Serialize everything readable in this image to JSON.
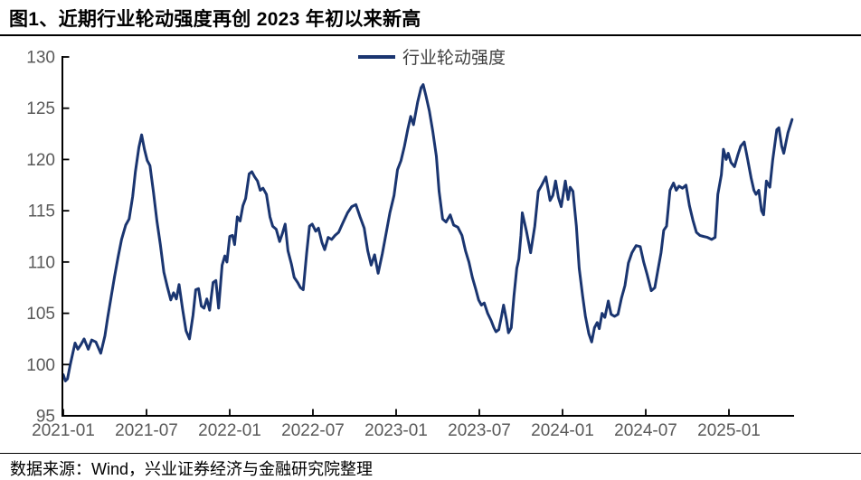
{
  "page": {
    "title": "图1、近期行业轮动强度再创 2023 年初以来新高",
    "source_note": "数据来源：Wind，兴业证券经济与金融研究院整理"
  },
  "chart_data": {
    "type": "line",
    "title": "行业轮动强度 (Industry Rotation Intensity)",
    "legend_position": "top-center",
    "grid": false,
    "line_color": "#1A3570",
    "axis_color": "#000000",
    "tick_label_color": "#595959",
    "ylim": [
      95,
      130
    ],
    "y_ticks": [
      95,
      100,
      105,
      110,
      115,
      120,
      125,
      130
    ],
    "x_tick_labels": [
      "2021-01",
      "2021-07",
      "2022-01",
      "2022-07",
      "2023-01",
      "2023-07",
      "2024-01",
      "2024-07",
      "2025-01"
    ],
    "x_unit": "months since 2021-01 (one tick every 6 months)",
    "x_range_months": [
      0,
      52.6
    ],
    "series": [
      {
        "name": "行业轮动强度",
        "points": [
          [
            0,
            99
          ],
          [
            0.15,
            98.4
          ],
          [
            0.3,
            98.6
          ],
          [
            0.5,
            100
          ],
          [
            0.7,
            101.2
          ],
          [
            0.85,
            102.1
          ],
          [
            1.05,
            101.5
          ],
          [
            1.25,
            101.9
          ],
          [
            1.5,
            102.5
          ],
          [
            1.8,
            101.5
          ],
          [
            2.05,
            102.4
          ],
          [
            2.35,
            102.2
          ],
          [
            2.7,
            101.1
          ],
          [
            3,
            102.8
          ],
          [
            3.2,
            104.6
          ],
          [
            3.45,
            106.6
          ],
          [
            3.7,
            108.6
          ],
          [
            3.95,
            110.5
          ],
          [
            4.2,
            112.2
          ],
          [
            4.5,
            113.6
          ],
          [
            4.75,
            114.2
          ],
          [
            5,
            116.4
          ],
          [
            5.2,
            118.8
          ],
          [
            5.45,
            121.2
          ],
          [
            5.65,
            122.4
          ],
          [
            5.85,
            121
          ],
          [
            6.05,
            119.9
          ],
          [
            6.25,
            119.4
          ],
          [
            6.5,
            116.8
          ],
          [
            6.75,
            114
          ],
          [
            7,
            111.7
          ],
          [
            7.25,
            109
          ],
          [
            7.5,
            107.6
          ],
          [
            7.75,
            106.3
          ],
          [
            7.95,
            107
          ],
          [
            8.15,
            106.4
          ],
          [
            8.35,
            107.8
          ],
          [
            8.6,
            105.4
          ],
          [
            8.85,
            103.3
          ],
          [
            9.1,
            102.5
          ],
          [
            9.35,
            104.8
          ],
          [
            9.55,
            107.3
          ],
          [
            9.75,
            107.4
          ],
          [
            9.95,
            105.7
          ],
          [
            10.15,
            105.5
          ],
          [
            10.35,
            106.4
          ],
          [
            10.55,
            105.3
          ],
          [
            10.8,
            108
          ],
          [
            11,
            108.2
          ],
          [
            11.2,
            105.5
          ],
          [
            11.45,
            109.7
          ],
          [
            11.65,
            110.6
          ],
          [
            11.8,
            110
          ],
          [
            12,
            112.5
          ],
          [
            12.2,
            112.6
          ],
          [
            12.35,
            111.7
          ],
          [
            12.55,
            114.4
          ],
          [
            12.75,
            114
          ],
          [
            12.95,
            115.5
          ],
          [
            13.15,
            116.2
          ],
          [
            13.4,
            118.6
          ],
          [
            13.6,
            118.8
          ],
          [
            13.8,
            118.3
          ],
          [
            14,
            117.9
          ],
          [
            14.2,
            117
          ],
          [
            14.4,
            117.2
          ],
          [
            14.65,
            116.6
          ],
          [
            14.9,
            114.4
          ],
          [
            15.1,
            113.5
          ],
          [
            15.35,
            113.2
          ],
          [
            15.6,
            112
          ],
          [
            15.8,
            112.8
          ],
          [
            16,
            113.7
          ],
          [
            16.2,
            111.1
          ],
          [
            16.45,
            109.8
          ],
          [
            16.65,
            108.5
          ],
          [
            16.9,
            108
          ],
          [
            17.1,
            107.5
          ],
          [
            17.3,
            107.3
          ],
          [
            17.55,
            110.9
          ],
          [
            17.75,
            113.5
          ],
          [
            17.95,
            113.7
          ],
          [
            18.2,
            113
          ],
          [
            18.4,
            113.3
          ],
          [
            18.65,
            111.9
          ],
          [
            18.85,
            111.2
          ],
          [
            19.1,
            112.4
          ],
          [
            19.35,
            112.2
          ],
          [
            19.6,
            112.6
          ],
          [
            19.85,
            112.9
          ],
          [
            20.15,
            113.8
          ],
          [
            20.5,
            114.8
          ],
          [
            20.8,
            115.4
          ],
          [
            21.1,
            115.6
          ],
          [
            21.4,
            114.4
          ],
          [
            21.7,
            113.3
          ],
          [
            21.95,
            111.1
          ],
          [
            22.2,
            109.7
          ],
          [
            22.45,
            110.7
          ],
          [
            22.7,
            108.9
          ],
          [
            23,
            110.8
          ],
          [
            23.25,
            112.6
          ],
          [
            23.55,
            114.8
          ],
          [
            23.85,
            116.5
          ],
          [
            24.1,
            119
          ],
          [
            24.35,
            119.9
          ],
          [
            24.6,
            121.3
          ],
          [
            24.85,
            123
          ],
          [
            25.05,
            124.2
          ],
          [
            25.25,
            123.4
          ],
          [
            25.55,
            125.6
          ],
          [
            25.8,
            127
          ],
          [
            25.95,
            127.3
          ],
          [
            26.15,
            126.2
          ],
          [
            26.4,
            124.7
          ],
          [
            26.65,
            122.7
          ],
          [
            26.9,
            120.3
          ],
          [
            27.1,
            116.9
          ],
          [
            27.35,
            114.2
          ],
          [
            27.6,
            113.9
          ],
          [
            27.9,
            114.6
          ],
          [
            28.15,
            113.6
          ],
          [
            28.45,
            113.4
          ],
          [
            28.75,
            112.6
          ],
          [
            29,
            111.1
          ],
          [
            29.25,
            110
          ],
          [
            29.5,
            108.5
          ],
          [
            29.75,
            107.3
          ],
          [
            29.95,
            106.3
          ],
          [
            30.15,
            105.8
          ],
          [
            30.35,
            106
          ],
          [
            30.6,
            105
          ],
          [
            30.85,
            104.3
          ],
          [
            31.05,
            103.6
          ],
          [
            31.2,
            103.2
          ],
          [
            31.4,
            103.4
          ],
          [
            31.6,
            104.7
          ],
          [
            31.75,
            105.8
          ],
          [
            31.95,
            104.4
          ],
          [
            32.1,
            103.1
          ],
          [
            32.3,
            103.6
          ],
          [
            32.5,
            106.7
          ],
          [
            32.7,
            109.4
          ],
          [
            32.85,
            110.3
          ],
          [
            33,
            112.6
          ],
          [
            33.1,
            114.8
          ],
          [
            33.4,
            113
          ],
          [
            33.7,
            110.9
          ],
          [
            34,
            113.5
          ],
          [
            34.25,
            116.9
          ],
          [
            34.5,
            117.5
          ],
          [
            34.8,
            118.3
          ],
          [
            35.1,
            116
          ],
          [
            35.3,
            116.5
          ],
          [
            35.5,
            117.9
          ],
          [
            35.7,
            116.3
          ],
          [
            35.9,
            115.4
          ],
          [
            36.2,
            117.9
          ],
          [
            36.4,
            116.1
          ],
          [
            36.55,
            117.3
          ],
          [
            36.75,
            116.9
          ],
          [
            37,
            113.5
          ],
          [
            37.2,
            109.4
          ],
          [
            37.45,
            106.7
          ],
          [
            37.65,
            104.7
          ],
          [
            37.9,
            103
          ],
          [
            38.1,
            102.2
          ],
          [
            38.3,
            103.6
          ],
          [
            38.5,
            104.1
          ],
          [
            38.65,
            103.5
          ],
          [
            38.85,
            105
          ],
          [
            39.05,
            104.6
          ],
          [
            39.3,
            106.2
          ],
          [
            39.5,
            104.9
          ],
          [
            39.75,
            104.7
          ],
          [
            40,
            104.9
          ],
          [
            40.25,
            106.5
          ],
          [
            40.5,
            107.7
          ],
          [
            40.75,
            109.9
          ],
          [
            41,
            110.9
          ],
          [
            41.3,
            111.6
          ],
          [
            41.6,
            111.5
          ],
          [
            41.85,
            110
          ],
          [
            42.1,
            108.8
          ],
          [
            42.4,
            107.2
          ],
          [
            42.65,
            107.5
          ],
          [
            42.9,
            109.4
          ],
          [
            43.1,
            110.9
          ],
          [
            43.3,
            113.1
          ],
          [
            43.5,
            113.5
          ],
          [
            43.75,
            117
          ],
          [
            44,
            117.7
          ],
          [
            44.2,
            117
          ],
          [
            44.4,
            117.4
          ],
          [
            44.65,
            117.2
          ],
          [
            44.9,
            117.5
          ],
          [
            45.15,
            115.5
          ],
          [
            45.4,
            114.1
          ],
          [
            45.65,
            112.9
          ],
          [
            45.9,
            112.6
          ],
          [
            46.15,
            112.5
          ],
          [
            46.45,
            112.4
          ],
          [
            46.75,
            112.2
          ],
          [
            47,
            112.4
          ],
          [
            47.2,
            116.6
          ],
          [
            47.45,
            118.5
          ],
          [
            47.6,
            121
          ],
          [
            47.8,
            120
          ],
          [
            47.95,
            120.6
          ],
          [
            48.15,
            119.7
          ],
          [
            48.4,
            119.3
          ],
          [
            48.65,
            120.5
          ],
          [
            48.85,
            121.3
          ],
          [
            49.1,
            121.7
          ],
          [
            49.35,
            120
          ],
          [
            49.6,
            118.2
          ],
          [
            49.8,
            117
          ],
          [
            49.95,
            116.6
          ],
          [
            50.15,
            117
          ],
          [
            50.35,
            115
          ],
          [
            50.5,
            114.6
          ],
          [
            50.7,
            117.9
          ],
          [
            50.95,
            117.3
          ],
          [
            51.15,
            119.9
          ],
          [
            51.45,
            122.9
          ],
          [
            51.6,
            123.1
          ],
          [
            51.8,
            121.3
          ],
          [
            51.95,
            120.6
          ],
          [
            52.25,
            122.6
          ],
          [
            52.55,
            123.9
          ]
        ]
      }
    ]
  }
}
